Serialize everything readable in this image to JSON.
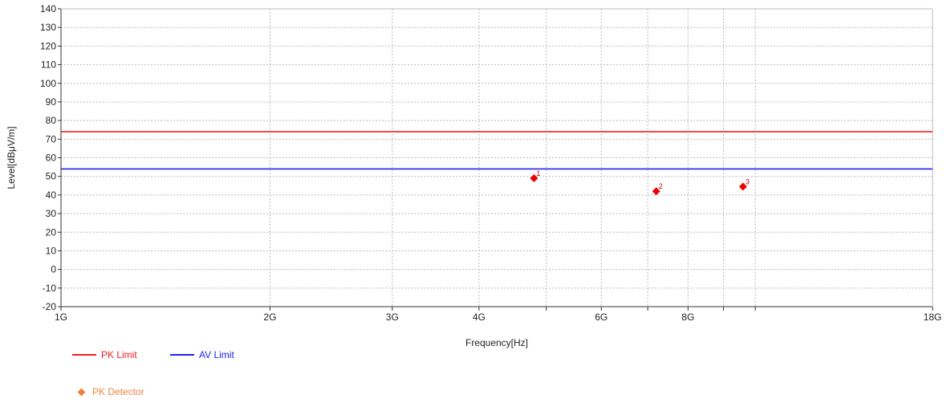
{
  "chart_data": {
    "type": "line",
    "xlabel": "Frequency[Hz]",
    "ylabel": "Level[dBμV/m]",
    "x_scale": "log",
    "xlim": [
      1000000000.0,
      18000000000.0
    ],
    "ylim": [
      -20,
      140
    ],
    "y_ticks": [
      -20,
      -10,
      0,
      10,
      20,
      30,
      40,
      50,
      60,
      70,
      80,
      90,
      100,
      110,
      120,
      130,
      140
    ],
    "x_ticks": [
      {
        "value": 1000000000.0,
        "label": "1G"
      },
      {
        "value": 2000000000.0,
        "label": "2G"
      },
      {
        "value": 3000000000.0,
        "label": "3G"
      },
      {
        "value": 4000000000.0,
        "label": "4G"
      },
      {
        "value": 6000000000.0,
        "label": "6G"
      },
      {
        "value": 8000000000.0,
        "label": "8G"
      },
      {
        "value": 18000000000.0,
        "label": "18G"
      }
    ],
    "x_gridlines": [
      1000000000.0,
      2000000000.0,
      3000000000.0,
      4000000000.0,
      5000000000.0,
      6000000000.0,
      7000000000.0,
      8000000000.0,
      9000000000.0,
      10000000000.0,
      18000000000.0
    ],
    "grid": true,
    "limits": [
      {
        "name": "PK Limit",
        "value": 74,
        "color": "#ee2222"
      },
      {
        "name": "AV Limit",
        "value": 54,
        "color": "#2222ee"
      }
    ],
    "series": [
      {
        "name": "PK Detector",
        "color": "#ee0000",
        "legend_color": "#f08040",
        "points": [
          {
            "x": 4800000000.0,
            "y": 49,
            "label": "1"
          },
          {
            "x": 7200000000.0,
            "y": 42,
            "label": "2"
          },
          {
            "x": 9600000000.0,
            "y": 44.5,
            "label": "3"
          }
        ]
      }
    ],
    "legend_position": "bottom-left"
  }
}
